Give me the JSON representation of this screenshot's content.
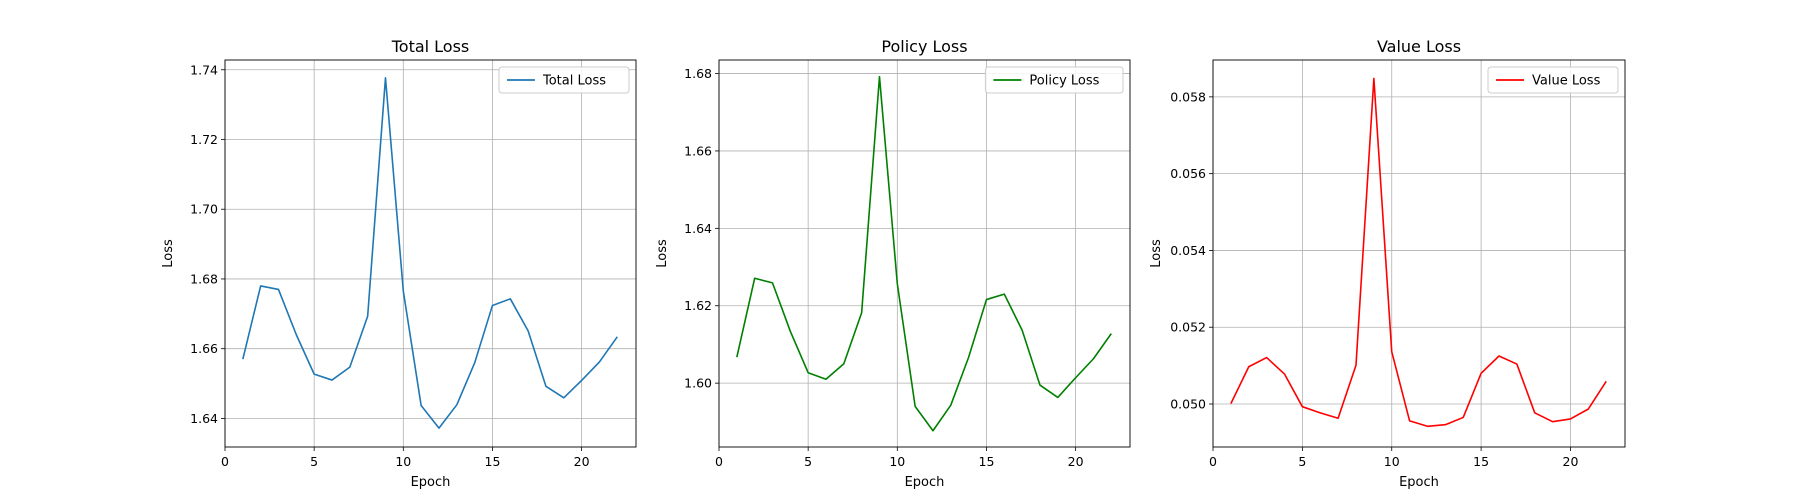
{
  "chart_data": [
    {
      "type": "line",
      "title": "Total Loss",
      "xlabel": "Epoch",
      "ylabel": "Loss",
      "xlim": [
        0,
        23.05
      ],
      "ylim": [
        1.6318,
        1.7428
      ],
      "xticks": [
        0,
        5,
        10,
        15,
        20
      ],
      "yticks": [
        1.64,
        1.66,
        1.68,
        1.7,
        1.72,
        1.74
      ],
      "ytick_labels": [
        "1.64",
        "1.66",
        "1.68",
        "1.70",
        "1.72",
        "1.74"
      ],
      "grid": true,
      "legend_position": "upper right",
      "series": [
        {
          "name": "Total Loss",
          "color": "#1f77b4",
          "x": [
            1,
            2,
            3,
            4,
            5,
            6,
            7,
            8,
            9,
            10,
            11,
            12,
            13,
            14,
            15,
            16,
            17,
            18,
            19,
            20,
            21,
            22
          ],
          "y": [
            1.657,
            1.678,
            1.677,
            1.664,
            1.6527,
            1.651,
            1.6547,
            1.6693,
            1.7377,
            1.6765,
            1.6437,
            1.6372,
            1.6439,
            1.6559,
            1.6724,
            1.6743,
            1.6651,
            1.6492,
            1.6459,
            1.6509,
            1.6562,
            1.6634
          ]
        }
      ]
    },
    {
      "type": "line",
      "title": "Policy Loss",
      "xlabel": "Epoch",
      "ylabel": "Loss",
      "xlim": [
        0,
        23.05
      ],
      "ylim": [
        1.5835,
        1.6835
      ],
      "xticks": [
        0,
        5,
        10,
        15,
        20
      ],
      "yticks": [
        1.6,
        1.62,
        1.64,
        1.66,
        1.68
      ],
      "ytick_labels": [
        "1.60",
        "1.62",
        "1.64",
        "1.66",
        "1.68"
      ],
      "grid": true,
      "legend_position": "upper right",
      "series": [
        {
          "name": "Policy Loss",
          "color": "#008000",
          "x": [
            1,
            2,
            3,
            4,
            5,
            6,
            7,
            8,
            9,
            10,
            11,
            12,
            13,
            14,
            15,
            16,
            17,
            18,
            19,
            20,
            21,
            22
          ],
          "y": [
            1.6067,
            1.6271,
            1.6259,
            1.6134,
            1.6027,
            1.601,
            1.605,
            1.6182,
            1.6792,
            1.6257,
            1.594,
            1.5877,
            1.5943,
            1.6067,
            1.6216,
            1.623,
            1.6137,
            1.5995,
            1.5963,
            1.6014,
            1.6063,
            1.6128
          ]
        }
      ]
    },
    {
      "type": "line",
      "title": "Value Loss",
      "xlabel": "Epoch",
      "ylabel": "Loss",
      "xlim": [
        0,
        23.05
      ],
      "ylim": [
        0.04888,
        0.05896
      ],
      "xticks": [
        0,
        5,
        10,
        15,
        20
      ],
      "yticks": [
        0.05,
        0.052,
        0.054,
        0.056,
        0.058
      ],
      "ytick_labels": [
        "0.050",
        "0.052",
        "0.054",
        "0.056",
        "0.058"
      ],
      "grid": true,
      "legend_position": "upper right",
      "series": [
        {
          "name": "Value Loss",
          "color": "#ff0000",
          "x": [
            1,
            2,
            3,
            4,
            5,
            6,
            7,
            8,
            9,
            10,
            11,
            12,
            13,
            14,
            15,
            16,
            17,
            18,
            19,
            20,
            21,
            22
          ],
          "y": [
            0.05001,
            0.05097,
            0.05121,
            0.05078,
            0.04993,
            0.04977,
            0.04963,
            0.05101,
            0.05848,
            0.05136,
            0.04956,
            0.04942,
            0.04946,
            0.04965,
            0.0508,
            0.05125,
            0.05104,
            0.04977,
            0.04954,
            0.04961,
            0.04987,
            0.05059
          ]
        }
      ]
    }
  ]
}
